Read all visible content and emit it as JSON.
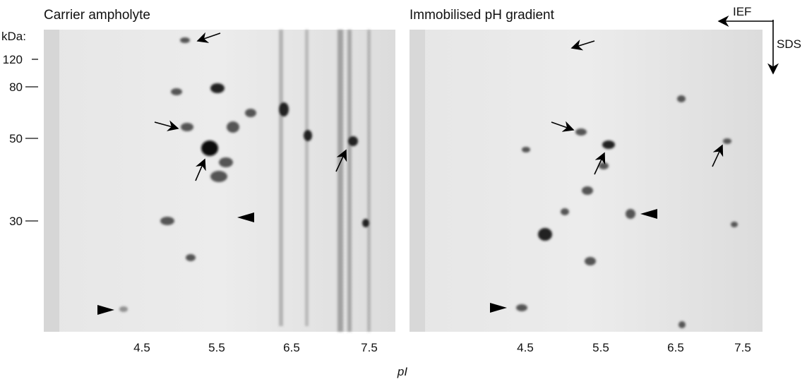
{
  "panels": [
    {
      "title": "Carrier ampholyte"
    },
    {
      "title": "Immobilised pH gradient"
    }
  ],
  "mw_axis": {
    "unit_label": "kDa:",
    "labels": [
      "120",
      "80",
      "50",
      "30"
    ]
  },
  "pi_axis": {
    "labels": [
      "4.5",
      "5.5",
      "6.5",
      "7.5"
    ],
    "axis_label": "pI"
  },
  "direction_labels": {
    "horizontal": "IEF",
    "vertical": "SDS"
  }
}
